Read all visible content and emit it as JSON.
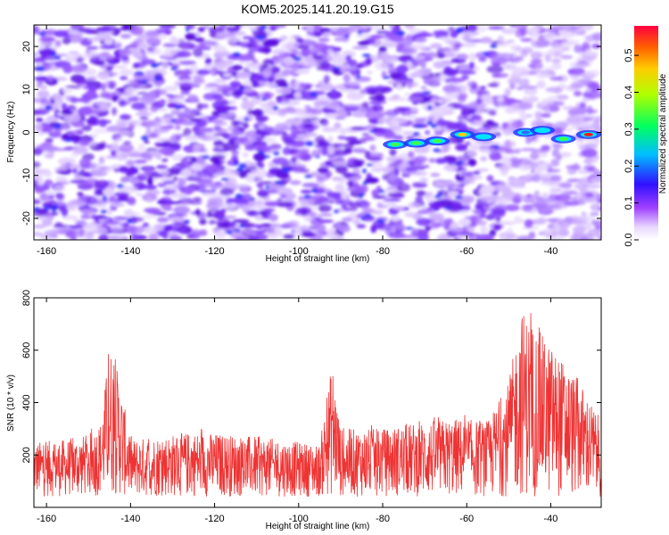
{
  "title": "KOM5.2025.141.20.19.G15",
  "chart_data": [
    {
      "type": "heatmap",
      "xlabel": "Height of straight line (km)",
      "ylabel": "Frequency (Hz)",
      "xlim": [
        -163,
        -28
      ],
      "ylim": [
        -25,
        25
      ],
      "xticks": [
        -160,
        -140,
        -120,
        -100,
        -80,
        -60,
        -40
      ],
      "yticks": [
        20,
        10,
        0,
        -10,
        -20
      ],
      "colorbar": {
        "label": "Normalized spectral amplitude",
        "range": [
          0,
          0.58
        ],
        "ticks": [
          0.0,
          0.1,
          0.2,
          0.3,
          0.4,
          0.5
        ],
        "colormap": [
          "#ffffff",
          "#7f00ff",
          "#0000ff",
          "#00ffff",
          "#00ff00",
          "#ffff00",
          "#ff8000",
          "#ff0000"
        ]
      },
      "signal": [
        {
          "x": -77,
          "y": -2.8,
          "amp": 0.3
        },
        {
          "x": -72,
          "y": -2.5,
          "amp": 0.32
        },
        {
          "x": -67,
          "y": -2.0,
          "amp": 0.3
        },
        {
          "x": -61,
          "y": -0.5,
          "amp": 0.45
        },
        {
          "x": -56,
          "y": -1.0,
          "amp": 0.22
        },
        {
          "x": -46,
          "y": 0.0,
          "amp": 0.2
        },
        {
          "x": -42,
          "y": 0.5,
          "amp": 0.28
        },
        {
          "x": -37,
          "y": -1.5,
          "amp": 0.35
        },
        {
          "x": -31,
          "y": -0.5,
          "amp": 0.58
        }
      ]
    },
    {
      "type": "line",
      "xlabel": "Height of straight line (km)",
      "ylabel": "SNR (10 * v/v)",
      "xlim": [
        -163,
        -28
      ],
      "ylim": [
        0,
        800
      ],
      "xticks": [
        -160,
        -140,
        -120,
        -100,
        -80,
        -60,
        -40
      ],
      "yticks": [
        200,
        400,
        600,
        800
      ],
      "color": "#ee3333",
      "envelope": [
        {
          "x": -163,
          "y": 250
        },
        {
          "x": -155,
          "y": 260
        },
        {
          "x": -150,
          "y": 280
        },
        {
          "x": -147,
          "y": 330
        },
        {
          "x": -145,
          "y": 620
        },
        {
          "x": -143,
          "y": 520
        },
        {
          "x": -140,
          "y": 260
        },
        {
          "x": -125,
          "y": 290
        },
        {
          "x": -110,
          "y": 270
        },
        {
          "x": -95,
          "y": 240
        },
        {
          "x": -92,
          "y": 560
        },
        {
          "x": -90,
          "y": 300
        },
        {
          "x": -80,
          "y": 300
        },
        {
          "x": -70,
          "y": 330
        },
        {
          "x": -62,
          "y": 340
        },
        {
          "x": -55,
          "y": 330
        },
        {
          "x": -50,
          "y": 480
        },
        {
          "x": -47,
          "y": 760
        },
        {
          "x": -43,
          "y": 680
        },
        {
          "x": -38,
          "y": 580
        },
        {
          "x": -33,
          "y": 480
        },
        {
          "x": -28,
          "y": 330
        }
      ]
    }
  ]
}
